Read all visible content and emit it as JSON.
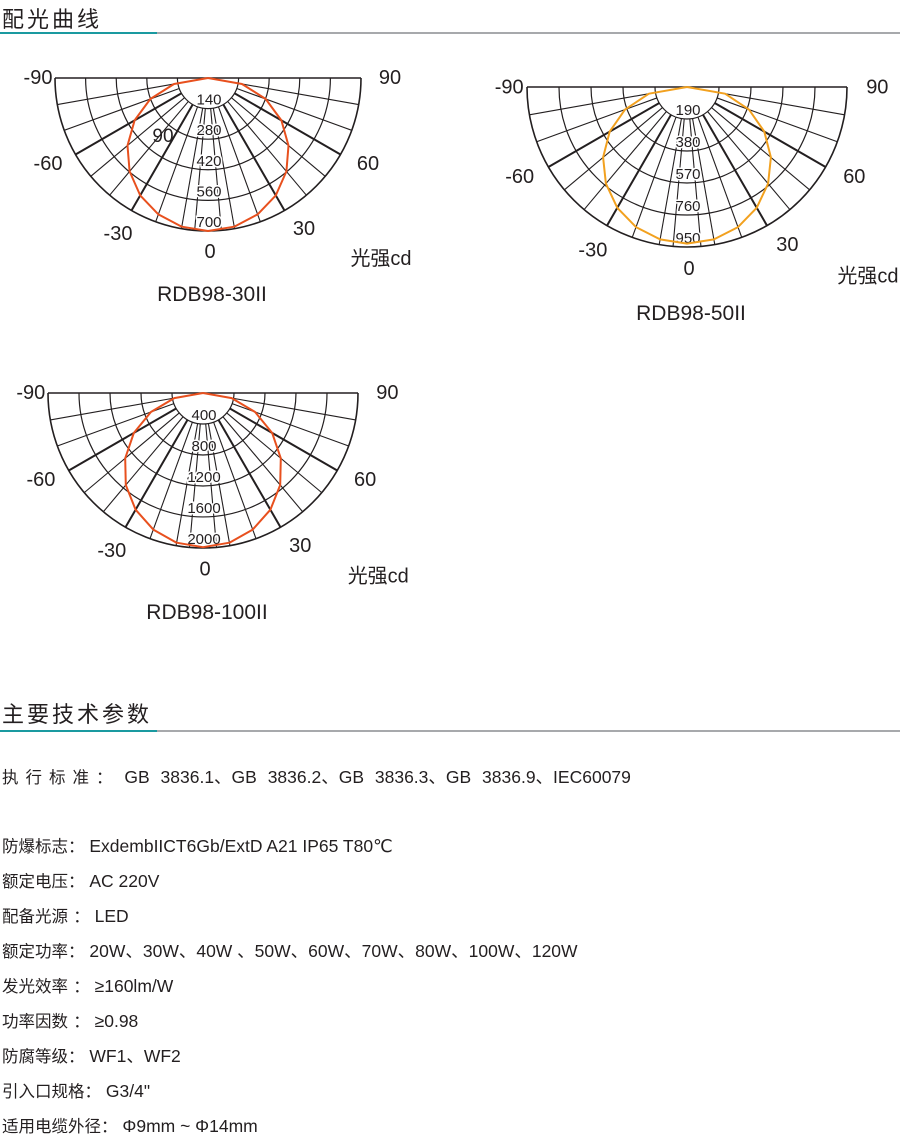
{
  "section1": {
    "title": "配光曲线"
  },
  "section2": {
    "title": "主要技术参数"
  },
  "colors": {
    "accent": "#1a9aa0",
    "rule": "#a7a9ac",
    "curve_red": "#e8501e",
    "curve_orange": "#f2a11f"
  },
  "chart_data": [
    {
      "type": "polar",
      "title": "RDB98-30II",
      "unit_label": "光强cd",
      "angle_labels": [
        "-90",
        "-60",
        "-30",
        "0",
        "30",
        "60",
        "90"
      ],
      "ring_labels": [
        "140",
        "280",
        "420",
        "560",
        "700"
      ],
      "extra_label": "90",
      "rmax": 700,
      "curve_color": "#e8501e",
      "angles": [
        0,
        10,
        20,
        30,
        40,
        50,
        60,
        70,
        80,
        90
      ],
      "intensity": [
        700,
        691,
        664,
        620,
        558,
        481,
        388,
        281,
        158,
        0
      ]
    },
    {
      "type": "polar",
      "title": "RDB98-50II",
      "unit_label": "光强cd",
      "angle_labels": [
        "-90",
        "-60",
        "-30",
        "0",
        "30",
        "60",
        "90"
      ],
      "ring_labels": [
        "190",
        "380",
        "570",
        "760",
        "950"
      ],
      "rmax": 950,
      "curve_color": "#f2a11f",
      "angles": [
        0,
        10,
        20,
        30,
        40,
        50,
        60,
        70,
        80,
        90
      ],
      "intensity": [
        930,
        919,
        885,
        828,
        749,
        650,
        530,
        392,
        230,
        0
      ]
    },
    {
      "type": "polar",
      "title": "RDB98-100II",
      "unit_label": "光强cd",
      "angle_labels": [
        "-90",
        "-60",
        "-30",
        "0",
        "30",
        "60",
        "90"
      ],
      "ring_labels": [
        "400",
        "800",
        "1200",
        "1600",
        "2000"
      ],
      "rmax": 2000,
      "curve_color": "#e8501e",
      "angles": [
        0,
        10,
        20,
        30,
        40,
        50,
        60,
        70,
        80,
        90
      ],
      "intensity": [
        1990,
        1961,
        1876,
        1739,
        1549,
        1311,
        1031,
        716,
        376,
        0
      ]
    }
  ],
  "specs": [
    {
      "label": "执行标准：",
      "value": "GB 3836.1、GB 3836.2、GB 3836.3、GB 3836.9、IEC60079"
    },
    {
      "label": "防爆标志：",
      "value": "ExdembIICT6Gb/ExtD A21 IP65 T80℃"
    },
    {
      "label": "额定电压：",
      "value": "AC 220V"
    },
    {
      "label": "配备光源 ：",
      "value": "LED"
    },
    {
      "label": "额定功率：",
      "value": "20W、30W、40W 、50W、60W、70W、80W、100W、120W"
    },
    {
      "label": "发光效率 ：",
      "value": "≥160lm/W"
    },
    {
      "label": "功率因数 ：",
      "value": "≥0.98"
    },
    {
      "label": "防腐等级：",
      "value": "WF1、WF2"
    },
    {
      "label": "引入口规格：",
      "value": "G3/4\""
    },
    {
      "label": "适用电缆外径：",
      "value": "Φ9mm ~ Φ14mm"
    }
  ]
}
